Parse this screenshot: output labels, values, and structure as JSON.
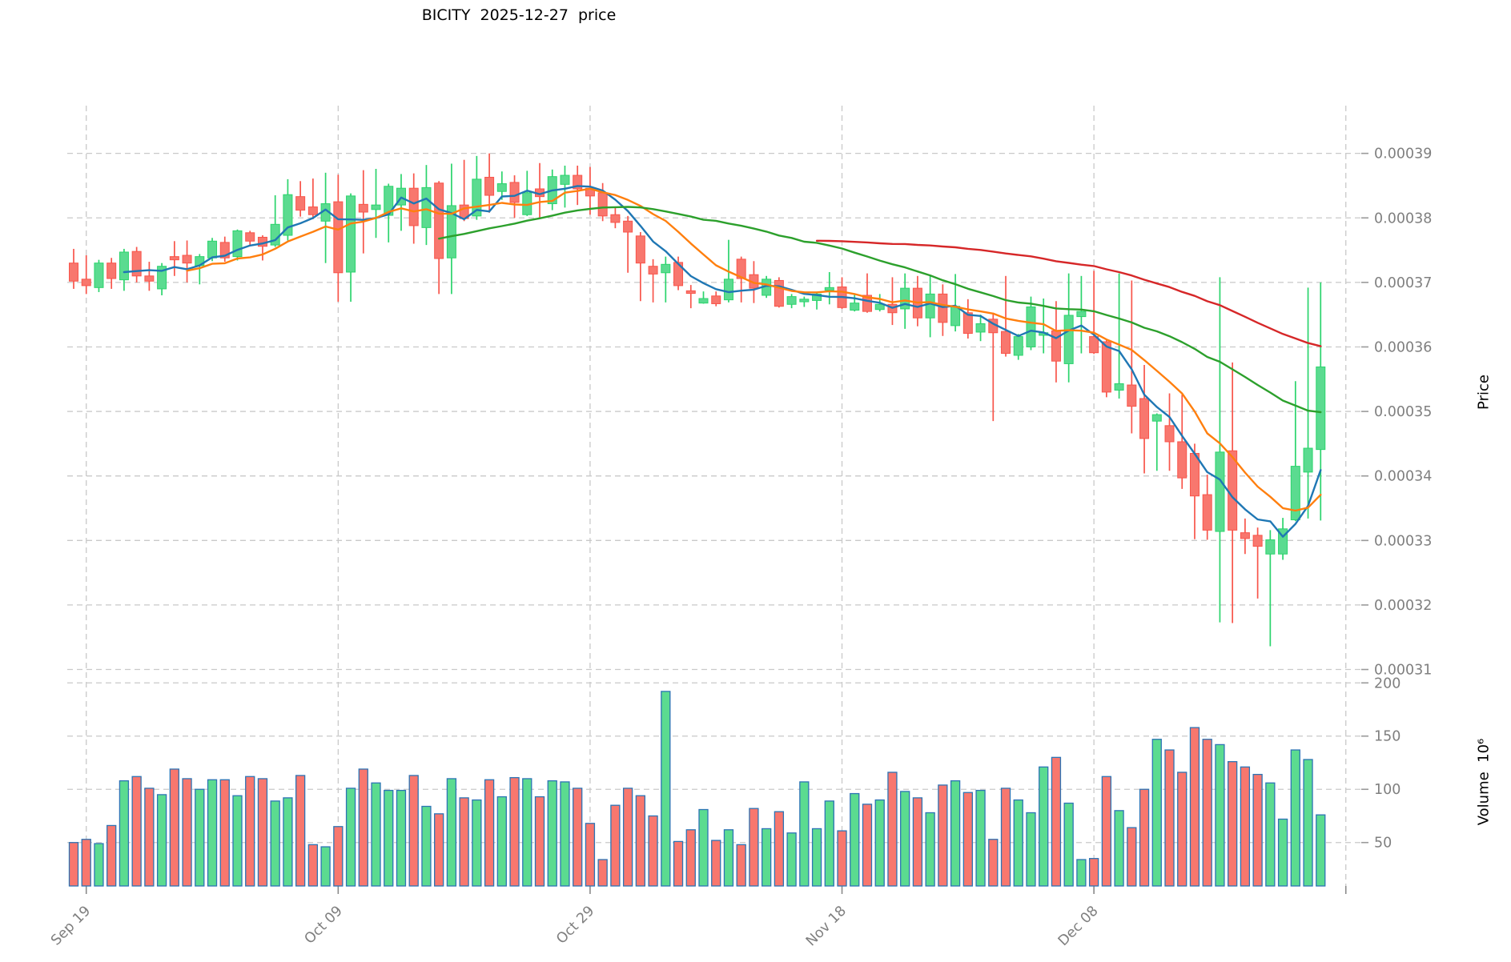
{
  "title": "BICITY  2025-12-27  price",
  "chart_data": {
    "type": "candlestick",
    "title": "BICITY  2025-12-27  price",
    "x_tick_labels": [
      "Sep 19",
      "Oct 09",
      "Oct 29",
      "Nov 18",
      "Dec 08"
    ],
    "x_tick_indices": [
      1,
      21,
      41,
      61,
      81
    ],
    "unlabeled_right_gridline_index": 101,
    "price_axis": {
      "label": "Price",
      "tick_labels": [
        "0.00039",
        "0.00038",
        "0.00037",
        "0.00036",
        "0.00035",
        "0.00034",
        "0.00033",
        "0.00032",
        "0.00031"
      ],
      "tick_values": [
        0.00039,
        0.00038,
        0.00037,
        0.00036,
        0.00035,
        0.00034,
        0.00033,
        0.00032,
        0.00031
      ],
      "ylim": [
        0.0003087,
        0.0003974
      ]
    },
    "volume_axis": {
      "label": "Volume  10⁶",
      "tick_labels": [
        "200",
        "150",
        "100",
        "50"
      ],
      "tick_values": [
        200,
        150,
        100,
        50
      ],
      "ylim": [
        9.2,
        204.7
      ]
    },
    "grid": {
      "on": true,
      "style": "dashed",
      "color": "#c9c9c9"
    },
    "price_unit": 1e-05,
    "ma_lines": [
      {
        "window": 5,
        "color": "#1f77b4"
      },
      {
        "window": 10,
        "color": "#ff7f0e"
      },
      {
        "window": 30,
        "color": "#2ca02c"
      },
      {
        "window": 60,
        "color": "#d62728"
      }
    ],
    "colors": {
      "up_body": "#5bdb90",
      "up_wick": "#2bd46c",
      "down_body": "#f8776e",
      "down_wick": "#f8554b",
      "volume_edge": "#2d74b5",
      "tick_label": "#7f7f7f",
      "grid": "#c9c9c9",
      "background": "#ffffff"
    },
    "ohlcv": [
      [
        37.3,
        37.52,
        36.9,
        37.02,
        50
      ],
      [
        37.05,
        37.42,
        36.82,
        36.95,
        53
      ],
      [
        36.92,
        37.35,
        36.85,
        37.3,
        49
      ],
      [
        37.3,
        37.38,
        36.9,
        37.06,
        66
      ],
      [
        37.04,
        37.52,
        36.87,
        37.47,
        108
      ],
      [
        37.48,
        37.55,
        37.0,
        37.1,
        112
      ],
      [
        37.1,
        37.32,
        36.87,
        37.02,
        101
      ],
      [
        36.9,
        37.3,
        36.8,
        37.25,
        95
      ],
      [
        37.4,
        37.64,
        37.1,
        37.35,
        119
      ],
      [
        37.42,
        37.65,
        37.0,
        37.3,
        110
      ],
      [
        37.26,
        37.44,
        36.97,
        37.4,
        100
      ],
      [
        37.38,
        37.69,
        37.33,
        37.64,
        109
      ],
      [
        37.62,
        37.71,
        37.32,
        37.38,
        109
      ],
      [
        37.4,
        37.82,
        37.34,
        37.8,
        94
      ],
      [
        37.77,
        37.8,
        37.58,
        37.64,
        112
      ],
      [
        37.7,
        37.73,
        37.34,
        37.56,
        110
      ],
      [
        37.58,
        38.35,
        37.55,
        37.9,
        89
      ],
      [
        37.73,
        38.6,
        37.65,
        38.36,
        92
      ],
      [
        38.33,
        38.57,
        38.02,
        38.12,
        113
      ],
      [
        38.17,
        38.61,
        37.98,
        38.05,
        48
      ],
      [
        37.95,
        38.7,
        37.3,
        38.22,
        46
      ],
      [
        38.25,
        38.67,
        36.7,
        37.15,
        65
      ],
      [
        37.16,
        38.38,
        36.7,
        38.34,
        101
      ],
      [
        38.21,
        38.74,
        37.45,
        38.09,
        119
      ],
      [
        38.13,
        38.76,
        37.69,
        38.2,
        106
      ],
      [
        38.04,
        38.53,
        37.62,
        38.49,
        99
      ],
      [
        38.2,
        38.68,
        37.8,
        38.46,
        99
      ],
      [
        38.46,
        38.69,
        37.6,
        37.88,
        113
      ],
      [
        37.85,
        38.82,
        37.58,
        38.47,
        84
      ],
      [
        38.54,
        38.57,
        36.82,
        37.37,
        77
      ],
      [
        37.38,
        38.84,
        36.82,
        38.19,
        110
      ],
      [
        38.2,
        38.9,
        37.95,
        37.99,
        92
      ],
      [
        38.03,
        38.96,
        37.97,
        38.6,
        90
      ],
      [
        38.63,
        39.0,
        38.08,
        38.35,
        109
      ],
      [
        38.41,
        38.72,
        38.28,
        38.53,
        93
      ],
      [
        38.55,
        38.66,
        38.0,
        38.24,
        111
      ],
      [
        38.05,
        38.73,
        38.03,
        38.39,
        110
      ],
      [
        38.45,
        38.85,
        37.99,
        38.33,
        93
      ],
      [
        38.22,
        38.75,
        38.12,
        38.64,
        108
      ],
      [
        38.52,
        38.81,
        38.16,
        38.66,
        107
      ],
      [
        38.66,
        38.81,
        38.2,
        38.45,
        101
      ],
      [
        38.46,
        38.79,
        38.05,
        38.34,
        68
      ],
      [
        38.39,
        38.54,
        37.95,
        38.03,
        34
      ],
      [
        38.05,
        38.16,
        37.84,
        37.93,
        85
      ],
      [
        37.95,
        38.03,
        37.15,
        37.78,
        101
      ],
      [
        37.72,
        37.78,
        36.71,
        37.3,
        94
      ],
      [
        37.25,
        37.36,
        36.69,
        37.13,
        75
      ],
      [
        37.15,
        37.4,
        36.69,
        37.28,
        192
      ],
      [
        37.31,
        37.4,
        36.88,
        36.95,
        51
      ],
      [
        36.87,
        36.96,
        36.6,
        36.83,
        62
      ],
      [
        36.68,
        36.86,
        36.67,
        36.75,
        81
      ],
      [
        36.79,
        36.86,
        36.63,
        36.67,
        52
      ],
      [
        36.73,
        37.66,
        36.69,
        37.05,
        62
      ],
      [
        37.36,
        37.4,
        36.69,
        37.06,
        48
      ],
      [
        37.12,
        37.33,
        36.68,
        36.91,
        82
      ],
      [
        36.8,
        37.1,
        36.76,
        37.05,
        63
      ],
      [
        37.03,
        37.08,
        36.61,
        36.63,
        79
      ],
      [
        36.66,
        36.82,
        36.6,
        36.78,
        59
      ],
      [
        36.7,
        36.78,
        36.62,
        36.74,
        107
      ],
      [
        36.72,
        36.84,
        36.58,
        36.82,
        63
      ],
      [
        36.88,
        37.16,
        36.66,
        36.92,
        89
      ],
      [
        36.93,
        37.08,
        36.59,
        36.61,
        61
      ],
      [
        36.57,
        36.82,
        36.55,
        36.68,
        96
      ],
      [
        36.8,
        37.14,
        36.53,
        36.55,
        86
      ],
      [
        36.58,
        36.82,
        36.55,
        36.66,
        90
      ],
      [
        36.66,
        37.08,
        36.34,
        36.53,
        116
      ],
      [
        36.59,
        37.14,
        36.28,
        36.91,
        98
      ],
      [
        36.91,
        37.1,
        36.32,
        36.45,
        92
      ],
      [
        36.45,
        37.1,
        36.15,
        36.82,
        78
      ],
      [
        36.82,
        36.97,
        36.17,
        36.38,
        104
      ],
      [
        36.33,
        37.13,
        36.24,
        36.63,
        108
      ],
      [
        36.53,
        36.74,
        36.13,
        36.21,
        97
      ],
      [
        36.23,
        36.5,
        36.09,
        36.36,
        99
      ],
      [
        36.43,
        36.53,
        34.85,
        36.22,
        53
      ],
      [
        36.24,
        37.1,
        35.85,
        35.9,
        101
      ],
      [
        35.87,
        36.2,
        35.8,
        36.16,
        90
      ],
      [
        36.0,
        36.78,
        35.95,
        36.62,
        78
      ],
      [
        36.18,
        36.75,
        35.9,
        36.22,
        121
      ],
      [
        36.25,
        36.71,
        35.45,
        35.78,
        130
      ],
      [
        35.74,
        37.14,
        35.45,
        36.49,
        87
      ],
      [
        36.47,
        37.1,
        35.9,
        36.55,
        34
      ],
      [
        36.16,
        37.18,
        35.89,
        35.91,
        35
      ],
      [
        36.08,
        36.12,
        35.22,
        35.3,
        112
      ],
      [
        35.33,
        37.14,
        35.2,
        35.43,
        80
      ],
      [
        35.41,
        37.03,
        34.66,
        35.08,
        64
      ],
      [
        35.2,
        35.72,
        34.04,
        34.58,
        100
      ],
      [
        34.85,
        34.97,
        34.08,
        34.95,
        147
      ],
      [
        34.78,
        35.28,
        34.08,
        34.53,
        137
      ],
      [
        34.53,
        35.26,
        33.8,
        33.97,
        116
      ],
      [
        34.35,
        34.5,
        33.02,
        33.69,
        158
      ],
      [
        33.71,
        34.02,
        33.01,
        33.16,
        147
      ],
      [
        33.14,
        37.08,
        31.73,
        34.37,
        142
      ],
      [
        34.39,
        35.76,
        31.72,
        33.16,
        126
      ],
      [
        33.12,
        33.34,
        32.79,
        33.03,
        121
      ],
      [
        33.08,
        33.2,
        32.1,
        32.91,
        114
      ],
      [
        32.79,
        33.16,
        31.36,
        33.01,
        106
      ],
      [
        32.79,
        33.35,
        32.7,
        33.18,
        72
      ],
      [
        33.32,
        35.47,
        33.3,
        34.15,
        137
      ],
      [
        34.06,
        36.92,
        33.34,
        34.43,
        128
      ],
      [
        34.41,
        37.0,
        33.31,
        35.69,
        76
      ]
    ]
  }
}
